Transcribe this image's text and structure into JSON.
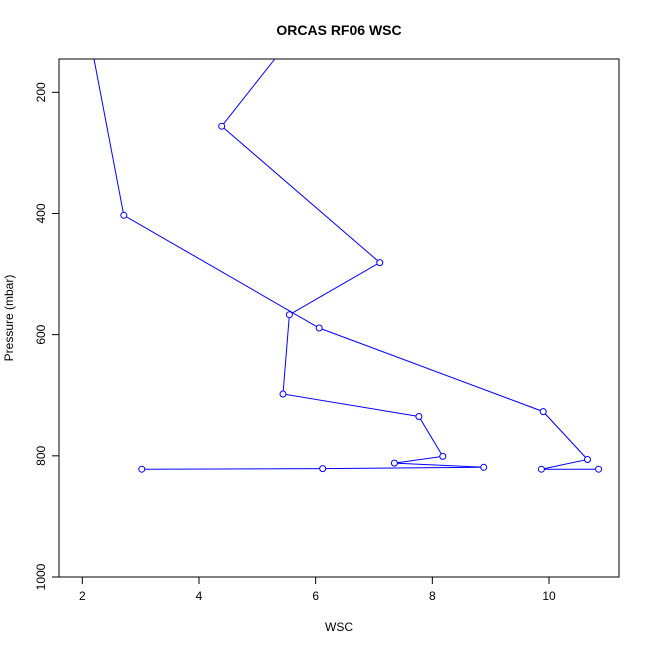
{
  "chart_data": {
    "type": "line",
    "title": "ORCAS RF06 WSC",
    "xlabel": "WSC",
    "ylabel": "Pressure (mbar)",
    "xlim": [
      1.6,
      11.2
    ],
    "ylim": [
      1000,
      145
    ],
    "y_inverted": true,
    "x_ticks": [
      2,
      4,
      6,
      8,
      10
    ],
    "x_tick_labels": [
      "2",
      "4",
      "6",
      "8",
      "10"
    ],
    "y_ticks": [
      200,
      400,
      600,
      800,
      1000
    ],
    "y_tick_labels": [
      "200",
      "400",
      "600",
      "800",
      "1000"
    ],
    "grid": false,
    "legend": "none",
    "series": [
      {
        "color": "#0000ff",
        "x": [
          3.02,
          6.12,
          8.88,
          7.35,
          8.18,
          7.77,
          5.44,
          5.55,
          7.1,
          4.39,
          5.3
        ],
        "y": [
          822,
          821,
          819,
          812,
          801,
          735,
          698,
          567,
          481,
          256,
          145
        ]
      },
      {
        "color": "#0000ff",
        "x": [
          10.85,
          9.87,
          10.66,
          9.9,
          6.06,
          2.71,
          2.2
        ],
        "y": [
          822,
          822,
          806,
          727,
          589,
          403,
          145
        ]
      }
    ]
  }
}
